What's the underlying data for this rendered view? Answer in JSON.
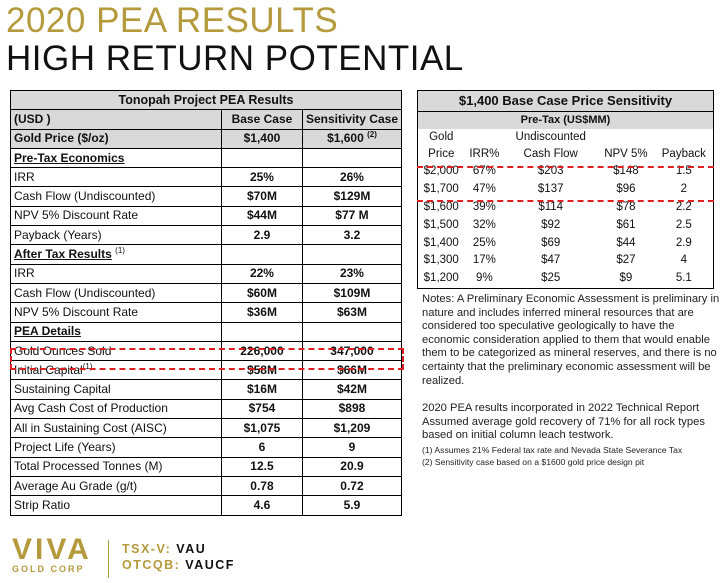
{
  "title1": "2020 PEA RESULTS",
  "title2": "HIGH RETURN POTENTIAL",
  "left": {
    "header": "Tonopah Project PEA Results",
    "col_head1": "(USD )",
    "col_head2": "Base Case",
    "col_head3": "Sensitivity Case",
    "price_label": "Gold Price ($/oz)",
    "price_base": "$1,400",
    "price_sens": "$1,600",
    "price_sens_sup": "(2)",
    "sec1": "Pre-Tax Economics",
    "sec2": "After Tax Results",
    "sec2_sup": "(1)",
    "sec3": "PEA Details",
    "pretax": [
      {
        "label": "IRR",
        "base": "25%",
        "sens": "26%"
      },
      {
        "label": "Cash Flow (Undiscounted)",
        "base": "$70M",
        "sens": "$129M"
      },
      {
        "label": "NPV 5% Discount Rate",
        "base": "$44M",
        "sens": "$77 M"
      },
      {
        "label": "Payback (Years)",
        "base": "2.9",
        "sens": "3.2"
      }
    ],
    "aftertax": [
      {
        "label": "IRR",
        "base": "22%",
        "sens": "23%"
      },
      {
        "label": "Cash Flow (Undiscounted)",
        "base": "$60M",
        "sens": "$109M"
      },
      {
        "label": "NPV 5% Discount Rate",
        "base": "$36M",
        "sens": "$63M"
      }
    ],
    "details": [
      {
        "label": "Gold Ounces Sold",
        "base": "226,000",
        "sens": "347,000",
        "sup": ""
      },
      {
        "label": "Initial Capital",
        "base": "$58M",
        "sens": "$66M",
        "sup": "(1)"
      },
      {
        "label": "Sustaining Capital",
        "base": "$16M",
        "sens": "$42M",
        "sup": ""
      },
      {
        "label": "Avg Cash Cost of Production",
        "base": "$754",
        "sens": "$898",
        "sup": ""
      },
      {
        "label": "All in Sustaining Cost (AISC)",
        "base": "$1,075",
        "sens": "$1,209",
        "sup": ""
      },
      {
        "label": "Project Life (Years)",
        "base": "6",
        "sens": "9",
        "sup": ""
      },
      {
        "label": "Total Processed Tonnes (M)",
        "base": "12.5",
        "sens": "20.9",
        "sup": ""
      },
      {
        "label": "Average Au Grade (g/t)",
        "base": "0.78",
        "sens": "0.72",
        "sup": ""
      },
      {
        "label": "Strip Ratio",
        "base": "4.6",
        "sens": "5.9",
        "sup": ""
      }
    ]
  },
  "right": {
    "title": "$1,400 Base Case Price Sensitivity",
    "subtitle": "Pre-Tax (US$MM)",
    "head_row1": [
      "Gold",
      "",
      "Undiscounted",
      "",
      ""
    ],
    "head_row2": [
      "Price",
      "IRR%",
      "Cash Flow",
      "NPV 5%",
      "Payback"
    ],
    "rows": [
      [
        "$2,000",
        "67%",
        "$203",
        "$148",
        "1.5"
      ],
      [
        "$1,700",
        "47%",
        "$137",
        "$96",
        "2"
      ],
      [
        "$1,600",
        "39%",
        "$114",
        "$78",
        "2.2"
      ],
      [
        "$1,500",
        "32%",
        "$92",
        "$61",
        "2.5"
      ],
      [
        "$1,400",
        "25%",
        "$69",
        "$44",
        "2.9"
      ],
      [
        "$1,300",
        "17%",
        "$47",
        "$27",
        "4"
      ],
      [
        "$1,200",
        "9%",
        "$25",
        "$9",
        "5.1"
      ]
    ]
  },
  "notes": {
    "p1": "Notes: A Preliminary Economic Assessment is preliminary in nature and includes inferred mineral resources that are considered too speculative geologically to have the economic consideration applied to them that would enable them to be categorized as mineral reserves, and there is no certainty that the preliminary economic assessment will be realized.",
    "p2": "2020 PEA results incorporated in 2022 Technical Report Assumed average gold recovery of 71% for all rock types based on initial column leach testwork.",
    "fn1": "(1)    Assumes 21% Federal tax rate and Nevada State Severance Tax",
    "fn2": "(2)    Sensitivity case based on a $1600 gold price design pit"
  },
  "footer": {
    "logo_main": "VIVA",
    "logo_sub": "GOLD CORP",
    "ex1_label": "TSX-V:",
    "ex1_val": "VAU",
    "ex2_label": "OTCQB:",
    "ex2_val": "VAUCF"
  },
  "colors": {
    "gold": "#b49a3c",
    "highlight": "#e02020",
    "header_bg": "#d9d9d9"
  }
}
